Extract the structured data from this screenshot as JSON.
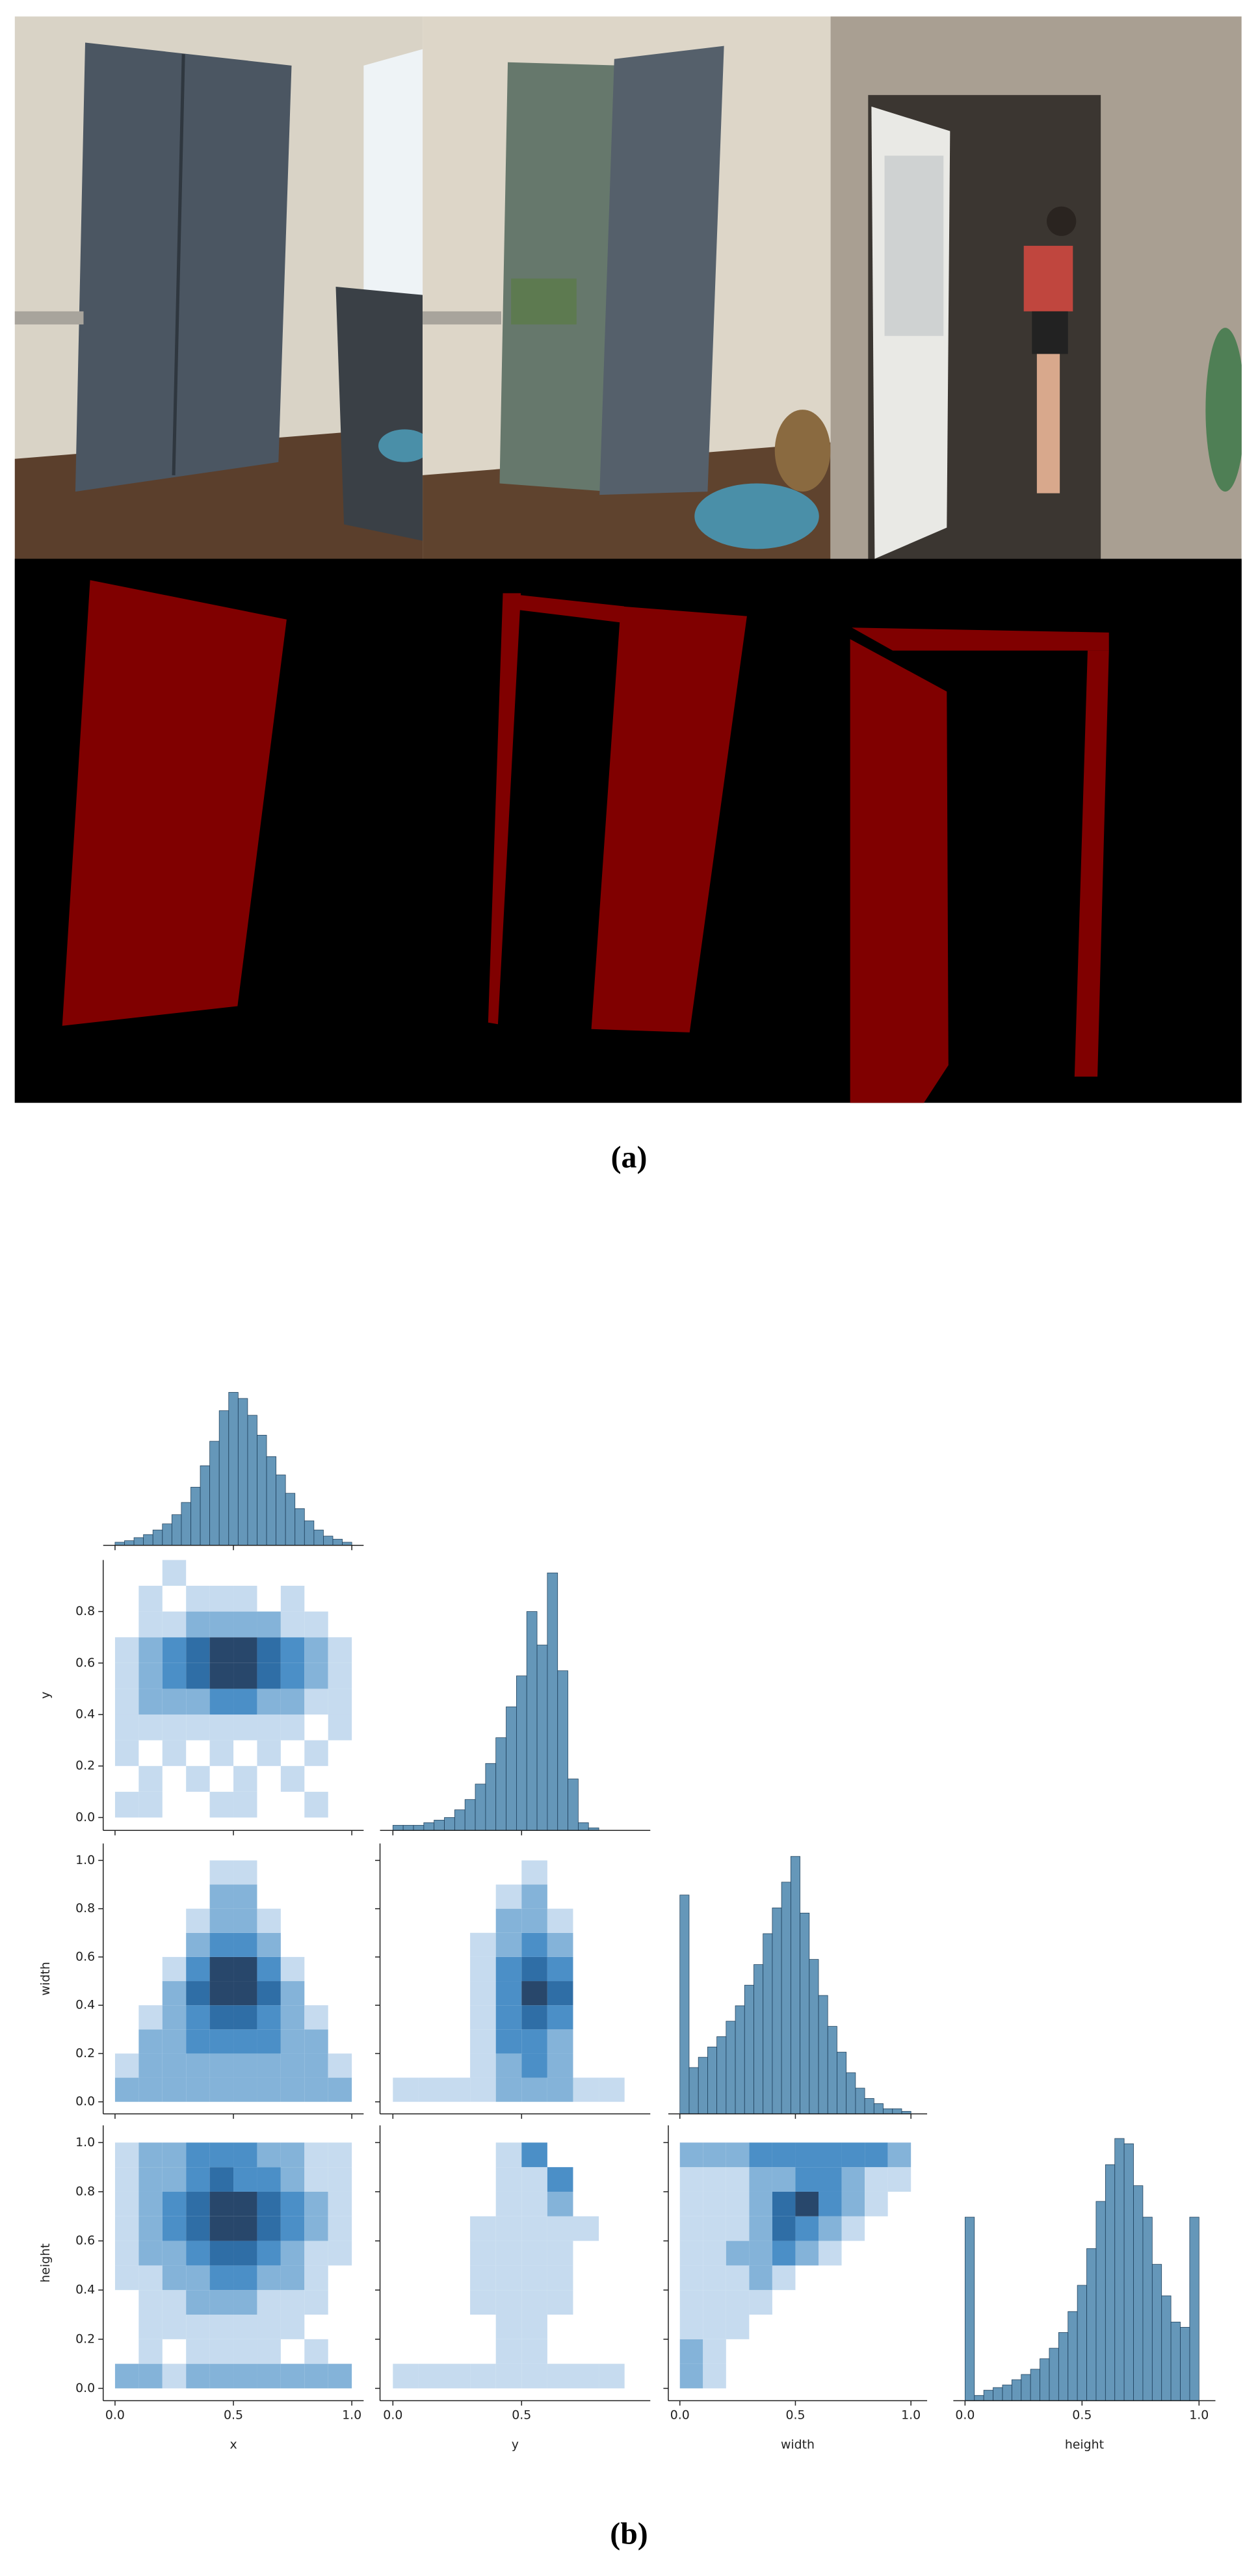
{
  "figure": {
    "caption_a": "(a)",
    "caption_b": "(b)"
  },
  "chart_data": {
    "type": "pairplot",
    "color": "#3274a1",
    "variables": [
      {
        "name": "x",
        "lim": [
          -0.05,
          1.05
        ],
        "xticks": [
          {
            "value": 0,
            "label": "0.0"
          },
          0.5,
          {
            "value": 1,
            "label": "1.0"
          }
        ]
      },
      {
        "name": "y",
        "lim": [
          -0.05,
          1.0
        ],
        "xticks": [
          {
            "value": 0,
            "label": "0.0"
          },
          0.5
        ],
        "yticks": [
          {
            "value": 0,
            "label": "0.0"
          },
          0.2,
          0.4,
          0.6,
          0.8
        ]
      },
      {
        "name": "width",
        "lim": [
          -0.05,
          1.07
        ],
        "xticks": [
          {
            "value": 0,
            "label": "0.0"
          },
          0.5,
          {
            "value": 1,
            "label": "1.0"
          }
        ],
        "yticks": [
          {
            "value": 0,
            "label": "0.0"
          },
          0.2,
          0.4,
          0.6,
          0.8,
          {
            "value": 1,
            "label": "1.0"
          }
        ]
      },
      {
        "name": "height",
        "lim": [
          -0.05,
          1.07
        ],
        "xticks": [
          {
            "value": 0,
            "label": "0.0"
          },
          0.5,
          {
            "value": 1,
            "label": "1.0"
          }
        ],
        "yticks": [
          {
            "value": 0,
            "label": "0.0"
          },
          0.2,
          0.4,
          0.6,
          0.8,
          {
            "value": 1,
            "label": "1.0"
          }
        ]
      }
    ],
    "bins": [
      0,
      0.04,
      0.08,
      0.12,
      0.16,
      0.2,
      0.24,
      0.28,
      0.32,
      0.36,
      0.4,
      0.44,
      0.48,
      0.52,
      0.56,
      0.6,
      0.64,
      0.68,
      0.72,
      0.76,
      0.8,
      0.84,
      0.88,
      0.92,
      0.96,
      1.0
    ],
    "count_lim": [
      0,
      105
    ],
    "histograms": [
      [
        2,
        3,
        5,
        7,
        10,
        14,
        20,
        28,
        38,
        52,
        68,
        88,
        100,
        96,
        85,
        72,
        58,
        46,
        34,
        24,
        16,
        10,
        6,
        4,
        2
      ],
      [
        2,
        2,
        2,
        3,
        4,
        5,
        8,
        12,
        18,
        26,
        36,
        48,
        60,
        85,
        72,
        100,
        62,
        20,
        3,
        1,
        0,
        0,
        0,
        0,
        0
      ],
      [
        85,
        18,
        22,
        26,
        30,
        36,
        42,
        50,
        58,
        70,
        80,
        90,
        100,
        78,
        60,
        46,
        34,
        24,
        16,
        10,
        6,
        4,
        2,
        2,
        1
      ],
      [
        70,
        2,
        4,
        5,
        6,
        8,
        10,
        12,
        16,
        20,
        26,
        34,
        44,
        58,
        76,
        90,
        100,
        98,
        82,
        70,
        52,
        40,
        30,
        28,
        70
      ]
    ],
    "grid_edges": [
      0,
      0.1,
      0.2,
      0.3,
      0.4,
      0.5,
      0.6,
      0.7,
      0.8,
      0.9,
      1.0
    ],
    "level_colors": [
      "#c6dbef",
      "#84b3d9",
      "#4b8fc7",
      "#2f6ea6",
      "#28476b"
    ],
    "density": [
      {
        "x": 0,
        "y": 1,
        "grid": [
          [
            1,
            1,
            0,
            0,
            1,
            1,
            0,
            0,
            1,
            0
          ],
          [
            0,
            1,
            0,
            1,
            0,
            1,
            0,
            1,
            0,
            0
          ],
          [
            1,
            0,
            1,
            0,
            1,
            0,
            1,
            0,
            1,
            0
          ],
          [
            1,
            1,
            1,
            1,
            1,
            1,
            1,
            1,
            0,
            1
          ],
          [
            1,
            2,
            2,
            2,
            3,
            3,
            2,
            2,
            1,
            1
          ],
          [
            1,
            2,
            3,
            4,
            5,
            5,
            4,
            3,
            2,
            1
          ],
          [
            1,
            2,
            3,
            4,
            5,
            5,
            4,
            3,
            2,
            1
          ],
          [
            0,
            1,
            1,
            2,
            2,
            2,
            2,
            1,
            1,
            0
          ],
          [
            0,
            1,
            0,
            1,
            1,
            1,
            0,
            1,
            0,
            0
          ],
          [
            0,
            0,
            1,
            0,
            0,
            0,
            0,
            0,
            0,
            0
          ]
        ]
      },
      {
        "x": 0,
        "y": 2,
        "grid": [
          [
            2,
            2,
            2,
            2,
            2,
            2,
            2,
            2,
            2,
            2
          ],
          [
            1,
            2,
            2,
            2,
            2,
            2,
            2,
            2,
            2,
            1
          ],
          [
            0,
            2,
            2,
            3,
            3,
            3,
            3,
            2,
            2,
            0
          ],
          [
            0,
            1,
            2,
            3,
            4,
            4,
            3,
            2,
            1,
            0
          ],
          [
            0,
            0,
            2,
            4,
            5,
            5,
            4,
            2,
            0,
            0
          ],
          [
            0,
            0,
            1,
            3,
            5,
            5,
            3,
            1,
            0,
            0
          ],
          [
            0,
            0,
            0,
            2,
            3,
            3,
            2,
            0,
            0,
            0
          ],
          [
            0,
            0,
            0,
            1,
            2,
            2,
            1,
            0,
            0,
            0
          ],
          [
            0,
            0,
            0,
            0,
            2,
            2,
            0,
            0,
            0,
            0
          ],
          [
            0,
            0,
            0,
            0,
            1,
            1,
            0,
            0,
            0,
            0
          ]
        ]
      },
      {
        "x": 1,
        "y": 2,
        "grid": [
          [
            1,
            1,
            1,
            1,
            2,
            2,
            2,
            1,
            1,
            0
          ],
          [
            0,
            0,
            0,
            1,
            2,
            3,
            2,
            0,
            0,
            0
          ],
          [
            0,
            0,
            0,
            1,
            3,
            3,
            2,
            0,
            0,
            0
          ],
          [
            0,
            0,
            0,
            1,
            3,
            4,
            3,
            0,
            0,
            0
          ],
          [
            0,
            0,
            0,
            1,
            3,
            5,
            4,
            0,
            0,
            0
          ],
          [
            0,
            0,
            0,
            1,
            3,
            4,
            3,
            0,
            0,
            0
          ],
          [
            0,
            0,
            0,
            1,
            2,
            3,
            2,
            0,
            0,
            0
          ],
          [
            0,
            0,
            0,
            0,
            2,
            2,
            1,
            0,
            0,
            0
          ],
          [
            0,
            0,
            0,
            0,
            1,
            2,
            0,
            0,
            0,
            0
          ],
          [
            0,
            0,
            0,
            0,
            0,
            1,
            0,
            0,
            0,
            0
          ]
        ]
      },
      {
        "x": 0,
        "y": 3,
        "grid": [
          [
            2,
            2,
            1,
            2,
            2,
            2,
            2,
            2,
            2,
            2
          ],
          [
            0,
            1,
            0,
            1,
            1,
            1,
            1,
            0,
            1,
            0
          ],
          [
            0,
            1,
            1,
            1,
            1,
            1,
            1,
            1,
            0,
            0
          ],
          [
            0,
            1,
            1,
            2,
            2,
            2,
            1,
            1,
            1,
            0
          ],
          [
            1,
            1,
            2,
            2,
            3,
            3,
            2,
            2,
            1,
            0
          ],
          [
            1,
            2,
            2,
            3,
            4,
            4,
            3,
            2,
            1,
            1
          ],
          [
            1,
            2,
            3,
            4,
            5,
            5,
            4,
            3,
            2,
            1
          ],
          [
            1,
            2,
            3,
            4,
            5,
            5,
            4,
            3,
            2,
            1
          ],
          [
            1,
            2,
            2,
            3,
            4,
            3,
            3,
            2,
            1,
            1
          ],
          [
            1,
            2,
            2,
            3,
            3,
            3,
            2,
            2,
            1,
            1
          ]
        ]
      },
      {
        "x": 1,
        "y": 3,
        "grid": [
          [
            1,
            1,
            1,
            1,
            1,
            1,
            1,
            1,
            1,
            0
          ],
          [
            0,
            0,
            0,
            0,
            1,
            1,
            0,
            0,
            0,
            0
          ],
          [
            0,
            0,
            0,
            0,
            1,
            1,
            0,
            0,
            0,
            0
          ],
          [
            0,
            0,
            0,
            1,
            1,
            1,
            1,
            0,
            0,
            0
          ],
          [
            0,
            0,
            0,
            1,
            1,
            1,
            1,
            0,
            0,
            0
          ],
          [
            0,
            0,
            0,
            1,
            1,
            1,
            1,
            0,
            0,
            0
          ],
          [
            0,
            0,
            0,
            1,
            1,
            1,
            1,
            1,
            0,
            0
          ],
          [
            0,
            0,
            0,
            0,
            1,
            1,
            2,
            0,
            0,
            0
          ],
          [
            0,
            0,
            0,
            0,
            1,
            1,
            3,
            0,
            0,
            0
          ],
          [
            0,
            0,
            0,
            0,
            1,
            3,
            0,
            0,
            0,
            0
          ]
        ]
      },
      {
        "x": 2,
        "y": 3,
        "grid": [
          [
            2,
            1,
            0,
            0,
            0,
            0,
            0,
            0,
            0,
            0
          ],
          [
            2,
            1,
            0,
            0,
            0,
            0,
            0,
            0,
            0,
            0
          ],
          [
            1,
            1,
            1,
            0,
            0,
            0,
            0,
            0,
            0,
            0
          ],
          [
            1,
            1,
            1,
            1,
            0,
            0,
            0,
            0,
            0,
            0
          ],
          [
            1,
            1,
            1,
            2,
            1,
            0,
            0,
            0,
            0,
            0
          ],
          [
            1,
            1,
            2,
            2,
            3,
            2,
            1,
            0,
            0,
            0
          ],
          [
            1,
            1,
            1,
            2,
            4,
            3,
            2,
            1,
            0,
            0
          ],
          [
            1,
            1,
            1,
            2,
            4,
            5,
            3,
            2,
            1,
            0
          ],
          [
            1,
            1,
            1,
            2,
            2,
            3,
            3,
            2,
            1,
            1
          ],
          [
            2,
            2,
            2,
            3,
            3,
            3,
            3,
            3,
            3,
            2
          ]
        ]
      }
    ]
  }
}
